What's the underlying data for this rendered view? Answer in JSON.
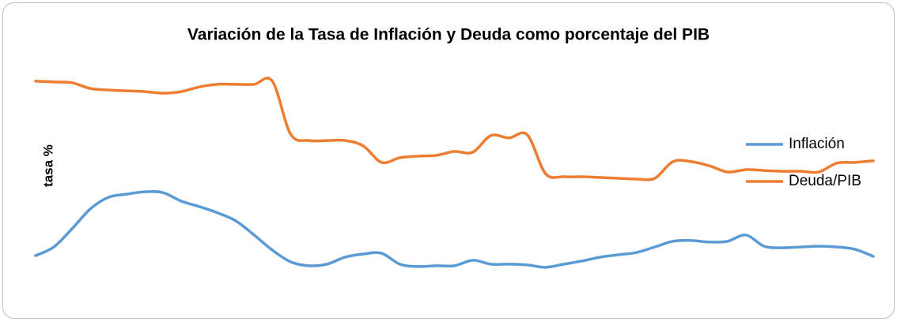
{
  "chart_data": {
    "type": "line",
    "title": "Variación de la Tasa de Inflación y Deuda como porcentaje del PIB",
    "y_label": "tasa %",
    "categories": [
      null,
      null,
      null,
      null,
      null,
      null,
      null,
      null,
      null,
      null,
      null,
      null,
      null,
      null,
      null,
      null,
      null,
      null,
      null,
      null,
      null,
      null,
      null,
      null,
      null,
      null,
      null,
      null,
      null,
      null,
      null,
      null,
      null,
      null,
      null,
      null,
      null,
      null,
      null,
      null,
      null,
      null,
      null,
      null,
      null,
      null,
      null
    ],
    "ylim": [
      0,
      100
    ],
    "legend": "right",
    "series": [
      {
        "name": "Inflación",
        "color": "#5b9bd5",
        "values": [
          20.0,
          23.3,
          30.3,
          37.9,
          42.4,
          43.6,
          44.5,
          44.2,
          40.9,
          38.8,
          36.4,
          33.3,
          27.9,
          22.1,
          17.6,
          16.1,
          16.7,
          19.4,
          20.6,
          20.9,
          16.7,
          15.8,
          16.1,
          16.1,
          18.2,
          16.7,
          16.7,
          16.4,
          15.5,
          16.7,
          17.9,
          19.4,
          20.3,
          21.2,
          23.3,
          25.5,
          25.8,
          25.2,
          25.5,
          27.9,
          23.6,
          23.0,
          23.3,
          23.6,
          23.3,
          22.4,
          19.7
        ]
      },
      {
        "name": "Deuda/PIB",
        "color": "#ed7d31",
        "values": [
          87.0,
          86.7,
          86.4,
          84.2,
          83.6,
          83.3,
          83.0,
          82.4,
          83.0,
          84.8,
          85.8,
          85.8,
          85.8,
          87.0,
          66.7,
          64.2,
          64.2,
          64.2,
          62.1,
          55.8,
          57.6,
          58.2,
          58.5,
          60.0,
          59.7,
          66.1,
          65.2,
          66.4,
          51.5,
          50.3,
          50.3,
          50.0,
          49.7,
          49.4,
          49.7,
          56.1,
          56.1,
          54.5,
          52.1,
          53.0,
          52.7,
          52.4,
          52.4,
          52.1,
          55.5,
          55.8,
          56.4
        ]
      }
    ]
  }
}
